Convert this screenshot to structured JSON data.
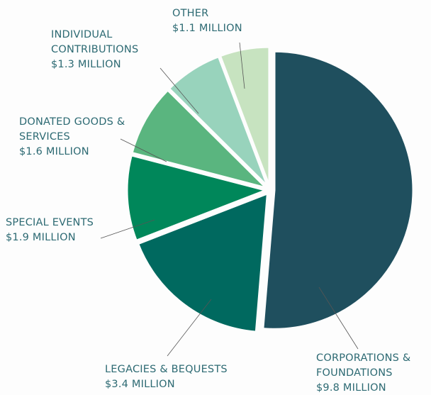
{
  "chart_data": {
    "type": "pie",
    "categories": [
      "CORPORATIONS & FOUNDATIONS",
      "LEGACIES & BEQUESTS",
      "SPECIAL EVENTS",
      "DONATED GOODS & SERVICES",
      "INDIVIDUAL CONTRIBUTIONS",
      "OTHER"
    ],
    "values": [
      9.8,
      3.4,
      1.9,
      1.6,
      1.3,
      1.1
    ],
    "value_labels": [
      "$9.8 MILLION",
      "$3.4 MILLION",
      "$1.9 MILLION",
      "$1.6 MILLION",
      "$1.3 MILLION",
      "$1.1 MILLION"
    ],
    "colors": [
      "#1f4f5e",
      "#00695f",
      "#00875a",
      "#5ab57f",
      "#98d3bc",
      "#c7e3c0"
    ]
  }
}
